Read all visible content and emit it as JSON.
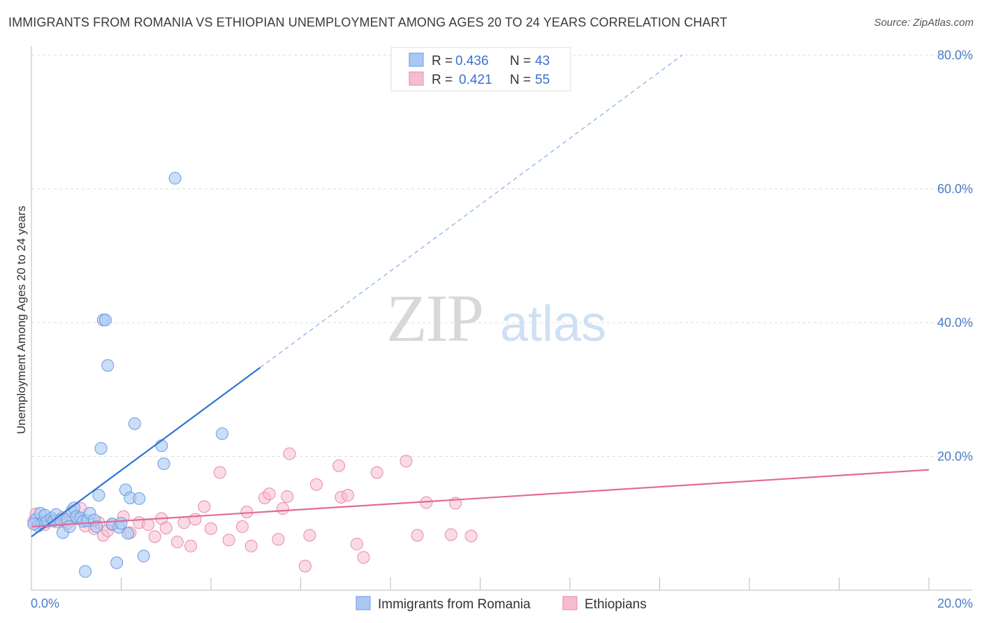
{
  "header": {
    "title": "IMMIGRANTS FROM ROMANIA VS ETHIOPIAN UNEMPLOYMENT AMONG AGES 20 TO 24 YEARS CORRELATION CHART",
    "source": "Source: ZipAtlas.com"
  },
  "watermark": {
    "zip": "ZIP",
    "atlas": "atlas"
  },
  "colors": {
    "blue_fill": "#a9c8f3",
    "blue_stroke": "#6a9be0",
    "blue_line": "#2e74d6",
    "pink_fill": "#f6bcd0",
    "pink_stroke": "#e88aab",
    "pink_line": "#e26a97",
    "tick_text": "#4a7cc9",
    "grid": "#dddddd"
  },
  "legend": {
    "rows": [
      {
        "r_label": "R =",
        "r_value": "0.436",
        "n_label": "N =",
        "n_value": "43",
        "series": "blue"
      },
      {
        "r_label": "R =",
        "r_value": "0.421",
        "n_label": "N =",
        "n_value": "55",
        "series": "pink"
      }
    ]
  },
  "bottom_legend": {
    "items": [
      {
        "label": "Immigrants from Romania",
        "series": "blue"
      },
      {
        "label": "Ethiopians",
        "series": "pink"
      }
    ]
  },
  "chart_data": {
    "type": "scatter",
    "title": "IMMIGRANTS FROM ROMANIA VS ETHIOPIAN UNEMPLOYMENT AMONG AGES 20 TO 24 YEARS CORRELATION CHART",
    "xlabel": "",
    "ylabel": "Unemployment Among Ages 20 to 24 years",
    "xlim": [
      0,
      20
    ],
    "ylim": [
      0,
      80
    ],
    "x_tick_labels": [
      {
        "value": 0,
        "label": "0.0%"
      },
      {
        "value": 20,
        "label": "20.0%"
      }
    ],
    "y_tick_labels": [
      {
        "value": 20,
        "label": "20.0%"
      },
      {
        "value": 40,
        "label": "40.0%"
      },
      {
        "value": 60,
        "label": "60.0%"
      },
      {
        "value": 80,
        "label": "80.0%"
      }
    ],
    "grid": true,
    "series": [
      {
        "name": "Immigrants from Romania",
        "color": "blue",
        "R": 0.436,
        "N": 43,
        "trend": {
          "x0": 0,
          "y0": 8.0,
          "x1": 5.1,
          "y1": 33.3,
          "dashed_to_x": 14.5,
          "dashed_to_y": 80.0
        },
        "points": [
          [
            0.1,
            10.6
          ],
          [
            0.15,
            9.6
          ],
          [
            0.2,
            11.5
          ],
          [
            0.25,
            10.1
          ],
          [
            0.3,
            11.2
          ],
          [
            0.35,
            10.3
          ],
          [
            0.45,
            10.8
          ],
          [
            0.5,
            10.4
          ],
          [
            0.55,
            11.3
          ],
          [
            0.65,
            10.5
          ],
          [
            0.7,
            8.6
          ],
          [
            0.8,
            10.6
          ],
          [
            0.85,
            9.5
          ],
          [
            0.9,
            11.8
          ],
          [
            0.95,
            12.3
          ],
          [
            1.0,
            11.0
          ],
          [
            1.1,
            10.8
          ],
          [
            1.15,
            10.3
          ],
          [
            1.25,
            10.4
          ],
          [
            1.3,
            11.5
          ],
          [
            1.4,
            10.5
          ],
          [
            1.45,
            9.5
          ],
          [
            1.5,
            14.2
          ],
          [
            1.55,
            21.2
          ],
          [
            1.6,
            40.4
          ],
          [
            1.65,
            40.4
          ],
          [
            1.7,
            33.6
          ],
          [
            1.8,
            9.9
          ],
          [
            1.9,
            4.1
          ],
          [
            1.95,
            9.4
          ],
          [
            2.0,
            10.0
          ],
          [
            2.1,
            15.0
          ],
          [
            2.15,
            8.5
          ],
          [
            2.2,
            13.8
          ],
          [
            2.3,
            24.9
          ],
          [
            2.4,
            13.7
          ],
          [
            2.5,
            5.1
          ],
          [
            2.9,
            21.6
          ],
          [
            2.95,
            18.9
          ],
          [
            3.2,
            61.6
          ],
          [
            4.25,
            23.4
          ],
          [
            1.2,
            2.8
          ],
          [
            0.05,
            9.9
          ]
        ]
      },
      {
        "name": "Ethiopians",
        "color": "pink",
        "R": 0.421,
        "N": 55,
        "trend": {
          "x0": 0,
          "y0": 9.5,
          "x1": 20,
          "y1": 18.0
        },
        "points": [
          [
            0.05,
            10.3
          ],
          [
            0.1,
            11.4
          ],
          [
            0.2,
            10.0
          ],
          [
            0.3,
            9.8
          ],
          [
            0.4,
            10.5
          ],
          [
            0.55,
            10.2
          ],
          [
            0.7,
            10.9
          ],
          [
            0.8,
            10.0
          ],
          [
            1.0,
            10.7
          ],
          [
            1.1,
            12.2
          ],
          [
            1.2,
            9.6
          ],
          [
            1.4,
            9.2
          ],
          [
            1.5,
            10.1
          ],
          [
            1.6,
            8.2
          ],
          [
            1.7,
            8.9
          ],
          [
            1.8,
            9.8
          ],
          [
            2.05,
            11.0
          ],
          [
            2.2,
            8.6
          ],
          [
            2.4,
            10.1
          ],
          [
            2.6,
            9.8
          ],
          [
            2.75,
            8.0
          ],
          [
            2.9,
            10.7
          ],
          [
            3.0,
            9.3
          ],
          [
            3.25,
            7.2
          ],
          [
            3.4,
            10.1
          ],
          [
            3.55,
            6.6
          ],
          [
            3.65,
            10.6
          ],
          [
            3.85,
            12.5
          ],
          [
            4.0,
            9.2
          ],
          [
            4.2,
            17.6
          ],
          [
            4.4,
            7.5
          ],
          [
            4.7,
            9.5
          ],
          [
            4.8,
            11.7
          ],
          [
            4.9,
            6.6
          ],
          [
            5.2,
            13.8
          ],
          [
            5.3,
            14.4
          ],
          [
            5.5,
            7.6
          ],
          [
            5.6,
            12.2
          ],
          [
            5.7,
            14.0
          ],
          [
            5.75,
            20.4
          ],
          [
            6.1,
            3.6
          ],
          [
            6.2,
            8.2
          ],
          [
            6.35,
            15.8
          ],
          [
            6.85,
            18.6
          ],
          [
            6.9,
            13.9
          ],
          [
            7.05,
            14.2
          ],
          [
            7.25,
            6.9
          ],
          [
            7.4,
            4.9
          ],
          [
            7.7,
            17.6
          ],
          [
            8.35,
            19.3
          ],
          [
            8.6,
            8.2
          ],
          [
            8.8,
            13.1
          ],
          [
            9.35,
            8.3
          ],
          [
            9.45,
            13.0
          ],
          [
            9.8,
            8.1
          ]
        ]
      }
    ]
  }
}
